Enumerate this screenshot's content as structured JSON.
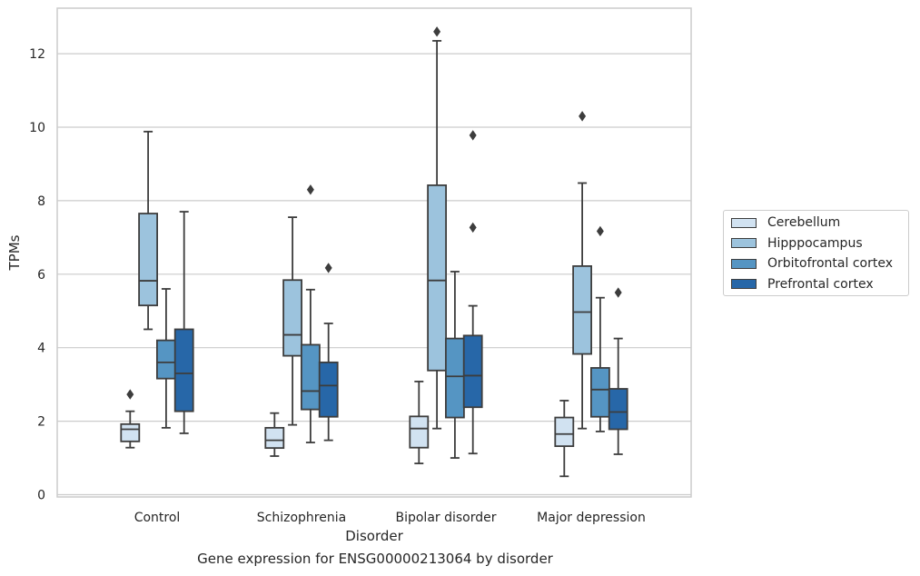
{
  "caption": "Gene expression for ENSG00000213064 by disorder",
  "chart_data": {
    "type": "box",
    "xlabel": "Disorder",
    "ylabel": "TPMs",
    "ylim": [
      -0.1,
      13.2
    ],
    "yticks": [
      0,
      2,
      4,
      6,
      8,
      10,
      12
    ],
    "grid": true,
    "legend_position": "right",
    "categories": [
      "Control",
      "Schizophrenia",
      "Bipolar disorder",
      "Major depression"
    ],
    "series": [
      {
        "name": "Cerebellum",
        "color": "#d1e2f1",
        "boxes": [
          {
            "whisker_low": 1.28,
            "q1": 1.45,
            "median": 1.78,
            "q3": 1.92,
            "whisker_high": 2.27,
            "outliers": [
              2.73
            ]
          },
          {
            "whisker_low": 1.05,
            "q1": 1.27,
            "median": 1.48,
            "q3": 1.82,
            "whisker_high": 2.22,
            "outliers": []
          },
          {
            "whisker_low": 0.85,
            "q1": 1.28,
            "median": 1.8,
            "q3": 2.13,
            "whisker_high": 3.08,
            "outliers": []
          },
          {
            "whisker_low": 0.5,
            "q1": 1.32,
            "median": 1.65,
            "q3": 2.1,
            "whisker_high": 2.56,
            "outliers": []
          }
        ]
      },
      {
        "name": "Hipppocampus",
        "color": "#9cc3dd",
        "boxes": [
          {
            "whisker_low": 4.5,
            "q1": 5.15,
            "median": 5.82,
            "q3": 7.65,
            "whisker_high": 9.88,
            "outliers": []
          },
          {
            "whisker_low": 1.9,
            "q1": 3.78,
            "median": 4.35,
            "q3": 5.84,
            "whisker_high": 7.55,
            "outliers": []
          },
          {
            "whisker_low": 1.8,
            "q1": 3.38,
            "median": 5.83,
            "q3": 8.42,
            "whisker_high": 12.35,
            "outliers": [
              12.6
            ]
          },
          {
            "whisker_low": 1.8,
            "q1": 3.83,
            "median": 4.97,
            "q3": 6.22,
            "whisker_high": 8.48,
            "outliers": [
              10.3
            ]
          }
        ]
      },
      {
        "name": "Orbitofrontal cortex",
        "color": "#5595c3",
        "boxes": [
          {
            "whisker_low": 1.82,
            "q1": 3.16,
            "median": 3.6,
            "q3": 4.2,
            "whisker_high": 5.6,
            "outliers": []
          },
          {
            "whisker_low": 1.42,
            "q1": 2.32,
            "median": 2.82,
            "q3": 4.08,
            "whisker_high": 5.58,
            "outliers": [
              8.3
            ]
          },
          {
            "whisker_low": 1.0,
            "q1": 2.1,
            "median": 3.22,
            "q3": 4.25,
            "whisker_high": 6.07,
            "outliers": []
          },
          {
            "whisker_low": 1.72,
            "q1": 2.12,
            "median": 2.86,
            "q3": 3.45,
            "whisker_high": 5.36,
            "outliers": [
              7.17
            ]
          }
        ]
      },
      {
        "name": "Prefrontal cortex",
        "color": "#2767a8",
        "boxes": [
          {
            "whisker_low": 1.67,
            "q1": 2.27,
            "median": 3.3,
            "q3": 4.5,
            "whisker_high": 7.7,
            "outliers": []
          },
          {
            "whisker_low": 1.48,
            "q1": 2.12,
            "median": 2.97,
            "q3": 3.6,
            "whisker_high": 4.66,
            "outliers": [
              6.17
            ]
          },
          {
            "whisker_low": 1.12,
            "q1": 2.38,
            "median": 3.24,
            "q3": 4.33,
            "whisker_high": 5.14,
            "outliers": [
              7.27,
              9.78
            ]
          },
          {
            "whisker_low": 1.1,
            "q1": 1.78,
            "median": 2.25,
            "q3": 2.88,
            "whisker_high": 4.25,
            "outliers": [
              5.5
            ]
          }
        ]
      }
    ]
  }
}
